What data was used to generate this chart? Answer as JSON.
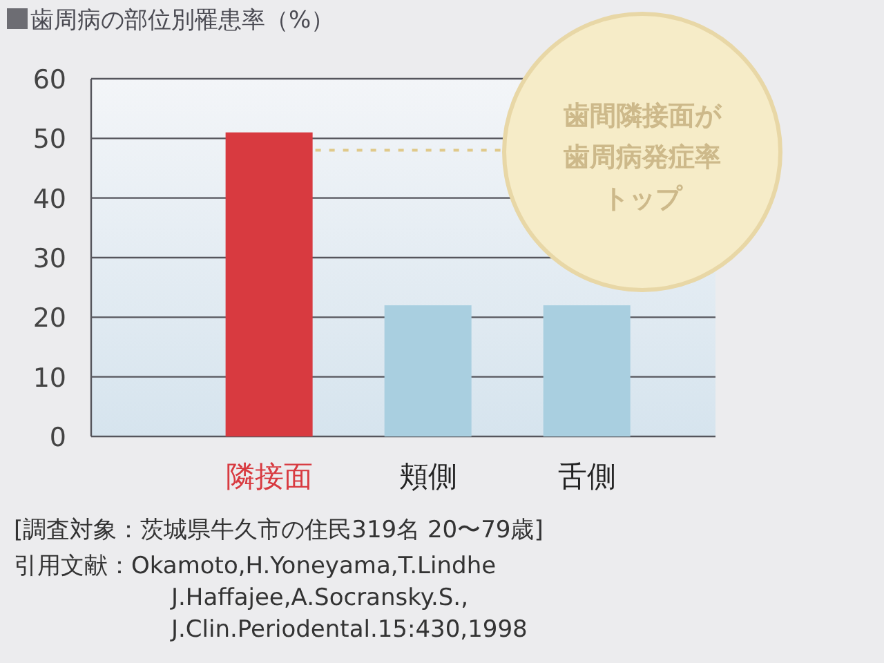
{
  "chart_data": {
    "type": "bar",
    "title": "歯周病の部位別罹患率（%）",
    "categories": [
      "隣接面",
      "頬側",
      "舌側"
    ],
    "values": [
      51,
      22,
      22
    ],
    "colors": [
      "#d83a40",
      "#a9cfe0",
      "#a9cfe0"
    ],
    "ylim": [
      0,
      60
    ],
    "yticks": [
      0,
      10,
      20,
      30,
      40,
      50,
      60
    ],
    "grid": "y",
    "ref_lines": [
      {
        "axis": "y",
        "value": 48,
        "label": null,
        "color": "#e0c98a",
        "line_style": "dotted"
      }
    ],
    "annotations": [
      "歯間隣接面が",
      "歯周病発症率",
      "トップ",
      "[調査対象：茨城県牛久市の住民319名 20〜79歳]",
      "引用文献：Okamoto,H.Yoneyama,T.Lindhe\nJ.Haffajee,A.Socransky.S.,\nJ.Clin.Periodental.15:430,1998"
    ]
  }
}
